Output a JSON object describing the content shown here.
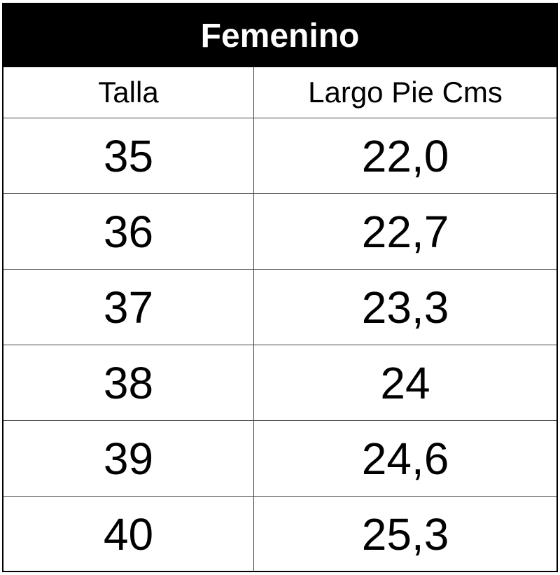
{
  "table": {
    "title": "Femenino",
    "header": [
      "Talla",
      "Largo Pie Cms"
    ],
    "rows": [
      [
        "35",
        "22,0"
      ],
      [
        "36",
        "22,7"
      ],
      [
        "37",
        "23,3"
      ],
      [
        "38",
        "24"
      ],
      [
        "39",
        "24,6"
      ],
      [
        "40",
        "25,3"
      ]
    ]
  }
}
